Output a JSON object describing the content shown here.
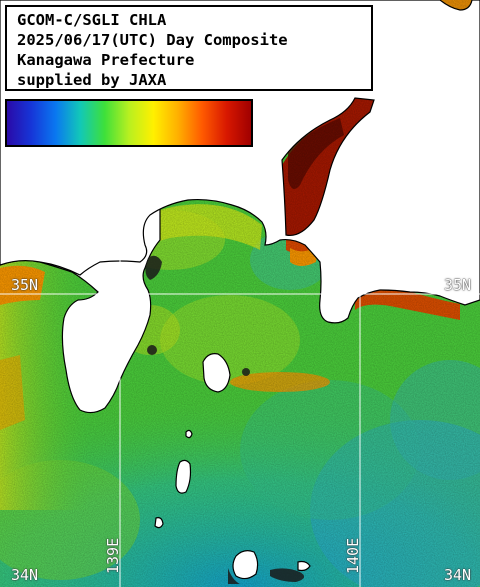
{
  "title": {
    "line1": "GCOM-C/SGLI CHLA",
    "line2": "2025/06/17(UTC) Day Composite",
    "line3": "Kanagawa Prefecture",
    "line4": "supplied by JAXA"
  },
  "colorbar": {
    "stops": [
      "#2a0aa8",
      "#1636d8",
      "#0a78f0",
      "#12c8b8",
      "#3ee03a",
      "#b8f020",
      "#fff000",
      "#ffb000",
      "#ff5a00",
      "#d81800",
      "#a00000"
    ]
  },
  "graticule": {
    "lat_35": "35N",
    "lat_34_left": "34N",
    "lat_34_right": "34N",
    "lon_139": "139E",
    "lon_140": "140E"
  },
  "colors": {
    "land": "#ffffff",
    "coast_outline": "#000000",
    "grid": "#ffffff",
    "ocean_base": "#4cd23c"
  }
}
